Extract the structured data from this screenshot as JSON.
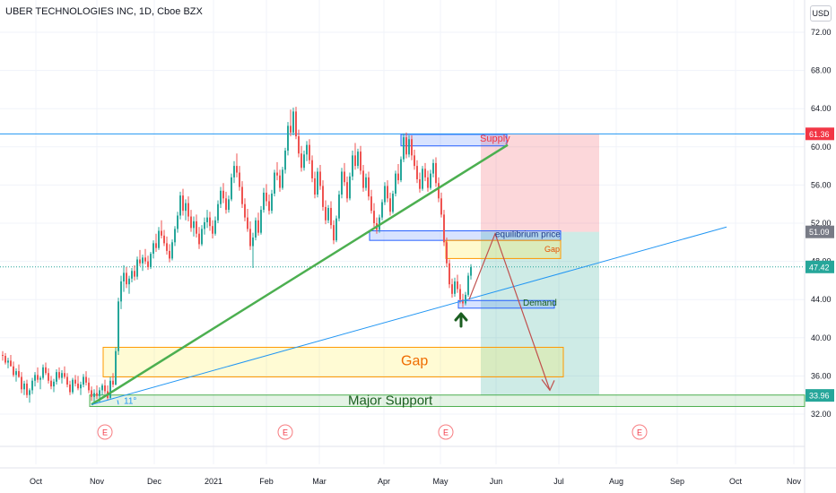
{
  "header": {
    "symbol_title": "UBER TECHNOLOGIES INC, 1D, Cboe BZX",
    "currency": "USD"
  },
  "chart_data": {
    "type": "candlestick",
    "symbol": "UBER TECHNOLOGIES INC",
    "interval": "1D",
    "exchange": "Cboe BZX",
    "ylim": [
      30.4,
      74.5
    ],
    "y_ticks": [
      32,
      36,
      40,
      44,
      48,
      52,
      56,
      60,
      64,
      68,
      72
    ],
    "y_tick_labels": [
      "32.00",
      "36.00",
      "40.00",
      "44.00",
      "48.00",
      "52.00",
      "56.00",
      "60.00",
      "64.00",
      "68.00",
      "72.00"
    ],
    "x_ticks": [
      "Oct",
      "Nov",
      "Dec",
      "2021",
      "Feb",
      "Mar",
      "Apr",
      "May",
      "Jun",
      "Jul",
      "Aug",
      "Sep",
      "Oct",
      "Nov"
    ],
    "price_labels": [
      {
        "value": 61.36,
        "label": "61.36",
        "color": "#f23645"
      },
      {
        "value": 51.09,
        "label": "51.09",
        "color": "#787b86"
      },
      {
        "value": 47.42,
        "label": "47.42",
        "color": "#26a69a"
      },
      {
        "value": 33.96,
        "label": "33.96",
        "color": "#26a69a"
      }
    ],
    "earnings_markers": {
      "label": "E",
      "count": 4
    },
    "annotations": {
      "supply": "Supply",
      "equilibrium": "equilibrium price",
      "gap_small": "Gap",
      "demand": "Demand",
      "gap_large": "Gap",
      "major_support": "Major Support",
      "angle": "11°"
    },
    "candles": [
      [
        38.2,
        38.6,
        37.6,
        38.1
      ],
      [
        38.1,
        38.4,
        37.2,
        37.4
      ],
      [
        37.4,
        37.9,
        36.8,
        37.6
      ],
      [
        37.6,
        38.2,
        37.1,
        37.0
      ],
      [
        37.0,
        37.5,
        35.9,
        36.1
      ],
      [
        36.1,
        36.8,
        35.4,
        36.5
      ],
      [
        36.5,
        37.2,
        35.8,
        35.9
      ],
      [
        35.9,
        36.4,
        34.2,
        34.6
      ],
      [
        34.6,
        35.5,
        34.0,
        35.2
      ],
      [
        35.2,
        35.6,
        33.7,
        34.0
      ],
      [
        34.0,
        34.7,
        33.2,
        34.5
      ],
      [
        34.5,
        35.8,
        34.1,
        35.5
      ],
      [
        35.5,
        36.4,
        34.9,
        36.1
      ],
      [
        36.1,
        36.9,
        35.3,
        35.6
      ],
      [
        35.6,
        36.0,
        34.6,
        35.8
      ],
      [
        35.8,
        37.2,
        35.6,
        36.9
      ],
      [
        36.9,
        37.4,
        36.1,
        36.3
      ],
      [
        36.3,
        36.8,
        35.2,
        35.5
      ],
      [
        35.5,
        36.0,
        34.6,
        34.9
      ],
      [
        34.9,
        35.7,
        34.3,
        35.4
      ],
      [
        35.4,
        36.7,
        35.1,
        36.4
      ],
      [
        36.4,
        36.9,
        35.6,
        35.8
      ],
      [
        35.8,
        36.6,
        35.2,
        36.3
      ],
      [
        36.3,
        37.0,
        35.7,
        35.9
      ],
      [
        35.9,
        36.3,
        34.8,
        35.1
      ],
      [
        35.1,
        35.5,
        34.0,
        34.3
      ],
      [
        34.3,
        35.8,
        34.1,
        35.6
      ],
      [
        35.6,
        36.1,
        34.9,
        35.2
      ],
      [
        35.2,
        36.0,
        34.5,
        34.7
      ],
      [
        34.7,
        35.4,
        34.0,
        35.1
      ],
      [
        35.1,
        36.2,
        34.8,
        35.9
      ],
      [
        35.9,
        36.5,
        35.0,
        35.3
      ],
      [
        35.3,
        35.8,
        34.2,
        34.5
      ],
      [
        34.5,
        34.9,
        33.4,
        33.8
      ],
      [
        33.8,
        34.6,
        33.2,
        34.2
      ],
      [
        34.2,
        35.0,
        33.6,
        33.9
      ],
      [
        33.9,
        34.8,
        33.2,
        34.5
      ],
      [
        34.5,
        35.2,
        34.0,
        35.0
      ],
      [
        35.0,
        35.6,
        34.1,
        34.4
      ],
      [
        34.4,
        35.0,
        33.5,
        33.7
      ],
      [
        33.7,
        35.9,
        33.6,
        35.5
      ],
      [
        35.5,
        36.3,
        34.8,
        35.1
      ],
      [
        35.1,
        39.0,
        35.0,
        38.6
      ],
      [
        38.6,
        44.2,
        38.2,
        43.8
      ],
      [
        43.8,
        46.5,
        43.0,
        45.9
      ],
      [
        45.9,
        47.6,
        44.8,
        46.8
      ],
      [
        46.8,
        47.4,
        45.2,
        45.6
      ],
      [
        45.6,
        46.5,
        44.6,
        46.2
      ],
      [
        46.2,
        47.3,
        45.8,
        47.0
      ],
      [
        47.0,
        47.6,
        46.0,
        46.4
      ],
      [
        46.4,
        48.5,
        46.1,
        48.2
      ],
      [
        48.2,
        49.2,
        47.5,
        47.8
      ],
      [
        47.8,
        48.7,
        47.0,
        48.4
      ],
      [
        48.4,
        49.3,
        47.7,
        48.0
      ],
      [
        48.0,
        48.6,
        47.1,
        47.4
      ],
      [
        47.4,
        49.0,
        47.2,
        48.8
      ],
      [
        48.8,
        50.2,
        48.3,
        49.9
      ],
      [
        49.9,
        50.9,
        49.0,
        49.4
      ],
      [
        49.4,
        51.6,
        49.2,
        51.2
      ],
      [
        51.2,
        52.3,
        50.4,
        50.7
      ],
      [
        50.7,
        51.3,
        49.6,
        49.9
      ],
      [
        49.9,
        50.6,
        48.7,
        49.1
      ],
      [
        49.1,
        49.8,
        47.9,
        48.3
      ],
      [
        48.3,
        50.3,
        48.1,
        50.0
      ],
      [
        50.0,
        51.7,
        49.6,
        51.4
      ],
      [
        51.4,
        53.2,
        51.0,
        52.8
      ],
      [
        52.8,
        55.3,
        52.4,
        54.9
      ],
      [
        54.9,
        55.6,
        52.8,
        53.3
      ],
      [
        53.3,
        54.5,
        52.3,
        54.1
      ],
      [
        54.1,
        54.8,
        52.2,
        52.7
      ],
      [
        52.7,
        53.4,
        51.1,
        51.5
      ],
      [
        51.5,
        52.7,
        50.6,
        52.2
      ],
      [
        52.2,
        52.9,
        50.5,
        50.9
      ],
      [
        50.9,
        51.6,
        49.3,
        49.8
      ],
      [
        49.8,
        51.8,
        49.6,
        51.4
      ],
      [
        51.4,
        52.6,
        50.8,
        52.1
      ],
      [
        52.1,
        53.4,
        51.5,
        52.6
      ],
      [
        52.6,
        53.2,
        51.2,
        51.7
      ],
      [
        51.7,
        52.3,
        50.4,
        50.9
      ],
      [
        50.9,
        52.7,
        50.7,
        52.3
      ],
      [
        52.3,
        54.4,
        52.0,
        54.0
      ],
      [
        54.0,
        55.8,
        53.6,
        55.4
      ],
      [
        55.4,
        56.2,
        54.1,
        54.6
      ],
      [
        54.6,
        55.3,
        53.0,
        53.4
      ],
      [
        53.4,
        54.9,
        53.1,
        54.5
      ],
      [
        54.5,
        57.2,
        54.3,
        56.8
      ],
      [
        56.8,
        58.5,
        56.2,
        58.0
      ],
      [
        58.0,
        59.3,
        56.8,
        57.3
      ],
      [
        57.3,
        58.0,
        55.4,
        55.8
      ],
      [
        55.8,
        56.4,
        53.6,
        54.0
      ],
      [
        54.0,
        54.6,
        52.2,
        52.6
      ],
      [
        52.6,
        53.5,
        51.1,
        51.4
      ],
      [
        51.4,
        52.2,
        49.2,
        49.6
      ],
      [
        49.6,
        51.0,
        47.3,
        50.5
      ],
      [
        50.5,
        52.6,
        50.2,
        52.3
      ],
      [
        52.3,
        53.1,
        50.7,
        51.0
      ],
      [
        51.0,
        53.8,
        50.8,
        53.4
      ],
      [
        53.4,
        55.7,
        53.1,
        55.2
      ],
      [
        55.2,
        56.1,
        53.8,
        54.3
      ],
      [
        54.3,
        55.0,
        52.9,
        53.3
      ],
      [
        53.3,
        55.5,
        53.0,
        55.1
      ],
      [
        55.1,
        57.6,
        54.8,
        57.3
      ],
      [
        57.3,
        58.4,
        56.5,
        57.0
      ],
      [
        57.0,
        57.6,
        55.3,
        55.7
      ],
      [
        55.7,
        57.9,
        55.5,
        57.6
      ],
      [
        57.6,
        59.9,
        57.2,
        59.6
      ],
      [
        59.6,
        62.6,
        59.1,
        62.2
      ],
      [
        62.2,
        63.9,
        61.1,
        61.5
      ],
      [
        61.5,
        64.1,
        61.2,
        63.7
      ],
      [
        63.7,
        64.2,
        60.8,
        61.1
      ],
      [
        61.1,
        61.8,
        58.9,
        59.3
      ],
      [
        59.3,
        60.1,
        57.4,
        57.8
      ],
      [
        57.8,
        59.6,
        57.5,
        59.2
      ],
      [
        59.2,
        60.6,
        58.5,
        60.2
      ],
      [
        60.2,
        60.8,
        58.2,
        58.6
      ],
      [
        58.6,
        59.1,
        56.3,
        56.7
      ],
      [
        56.7,
        57.4,
        54.6,
        55.0
      ],
      [
        55.0,
        57.8,
        54.7,
        57.4
      ],
      [
        57.4,
        58.1,
        55.5,
        55.9
      ],
      [
        55.9,
        56.5,
        53.3,
        53.7
      ],
      [
        53.7,
        54.4,
        51.9,
        52.3
      ],
      [
        52.3,
        53.9,
        52.0,
        53.6
      ],
      [
        53.6,
        54.3,
        51.4,
        51.8
      ],
      [
        51.8,
        52.3,
        49.8,
        50.2
      ],
      [
        50.2,
        52.8,
        50.0,
        52.5
      ],
      [
        52.5,
        55.4,
        52.2,
        55.0
      ],
      [
        55.0,
        57.8,
        54.6,
        57.4
      ],
      [
        57.4,
        58.3,
        55.9,
        56.3
      ],
      [
        56.3,
        56.9,
        54.2,
        54.6
      ],
      [
        54.6,
        57.3,
        54.4,
        56.9
      ],
      [
        56.9,
        59.6,
        56.5,
        59.1
      ],
      [
        59.1,
        60.4,
        57.6,
        58.0
      ],
      [
        58.0,
        59.8,
        57.7,
        59.5
      ],
      [
        59.5,
        60.1,
        57.1,
        57.5
      ],
      [
        57.5,
        58.1,
        55.3,
        55.7
      ],
      [
        55.7,
        57.2,
        55.4,
        56.8
      ],
      [
        56.8,
        57.4,
        54.4,
        54.8
      ],
      [
        54.8,
        55.5,
        53.0,
        53.3
      ],
      [
        53.3,
        54.1,
        51.6,
        52.0
      ],
      [
        52.0,
        52.6,
        50.9,
        51.3
      ],
      [
        51.3,
        52.9,
        51.0,
        52.6
      ],
      [
        52.6,
        54.5,
        52.3,
        54.2
      ],
      [
        54.2,
        56.3,
        53.9,
        55.9
      ],
      [
        55.9,
        56.5,
        54.2,
        54.6
      ],
      [
        54.6,
        55.2,
        52.8,
        53.2
      ],
      [
        53.2,
        55.4,
        53.0,
        55.1
      ],
      [
        55.1,
        57.5,
        54.8,
        57.2
      ],
      [
        57.2,
        58.2,
        56.1,
        56.5
      ],
      [
        56.5,
        59.0,
        56.3,
        58.7
      ],
      [
        58.7,
        61.4,
        58.4,
        61.0
      ],
      [
        61.0,
        61.5,
        58.8,
        59.2
      ],
      [
        59.2,
        61.2,
        58.9,
        60.8
      ],
      [
        60.8,
        61.2,
        58.6,
        59.1
      ],
      [
        59.1,
        59.7,
        57.6,
        58.0
      ],
      [
        58.0,
        58.6,
        56.2,
        56.6
      ],
      [
        56.6,
        57.3,
        55.2,
        55.6
      ],
      [
        55.6,
        58.0,
        55.4,
        57.7
      ],
      [
        57.7,
        58.3,
        56.4,
        56.8
      ],
      [
        56.8,
        57.5,
        55.3,
        55.7
      ],
      [
        55.7,
        57.6,
        55.5,
        57.2
      ],
      [
        57.2,
        58.7,
        56.8,
        58.3
      ],
      [
        58.3,
        58.9,
        55.8,
        56.2
      ],
      [
        56.2,
        56.8,
        54.2,
        54.6
      ],
      [
        54.6,
        55.2,
        52.6,
        52.9
      ],
      [
        52.9,
        53.4,
        49.6,
        50.0
      ],
      [
        50.0,
        50.5,
        47.4,
        47.8
      ],
      [
        47.8,
        48.2,
        45.2,
        45.6
      ],
      [
        45.6,
        46.2,
        44.2,
        44.6
      ],
      [
        44.6,
        46.3,
        44.3,
        45.9
      ],
      [
        45.9,
        46.6,
        44.7,
        45.1
      ],
      [
        45.1,
        45.6,
        43.6,
        44.0
      ],
      [
        44.0,
        44.6,
        43.2,
        43.6
      ],
      [
        43.6,
        44.8,
        43.4,
        44.5
      ],
      [
        44.5,
        46.8,
        44.3,
        46.5
      ],
      [
        46.5,
        47.7,
        46.1,
        47.4
      ]
    ]
  }
}
